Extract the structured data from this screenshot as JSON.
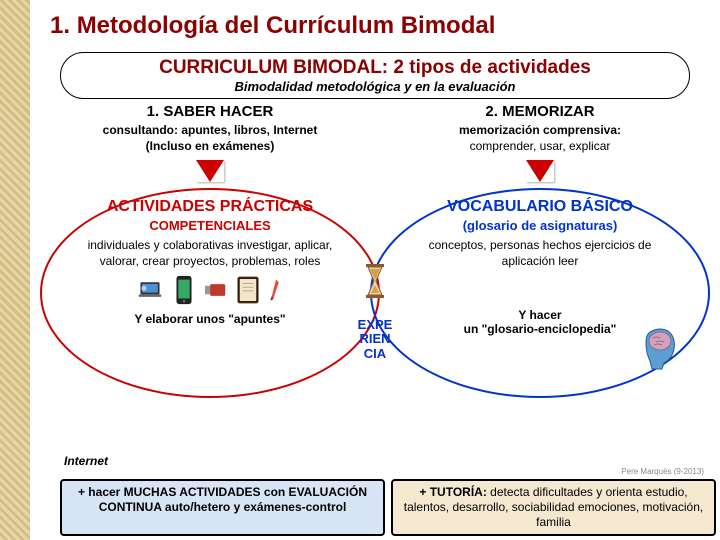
{
  "slide": {
    "number": "1.",
    "title": "Metodología del Currículum Bimodal"
  },
  "main": {
    "title": "CURRICULUM BIMODAL: 2 tipos de actividades",
    "subtitle": "Bimodalidad metodológica y en la evaluación"
  },
  "leftCol": {
    "title": "1. SABER HACER",
    "sub": "consultando: apuntes, libros, Internet",
    "sub2": "(Incluso en exámenes)"
  },
  "rightCol": {
    "title": "2. MEMORIZAR",
    "sub": "memorización comprensiva:",
    "sub2": "comprender, usar, explicar"
  },
  "leftAct": {
    "title": "ACTIVIDADES PRÁCTICAS",
    "subtitle": "COMPETENCIALES",
    "desc": "individuales y colaborativas investigar, aplicar, valorar, crear proyectos, problemas, roles",
    "bottom": "Y elaborar unos \"apuntes\""
  },
  "rightAct": {
    "title": "VOCABULARIO BÁSICO",
    "subtitle": "(glosario de asignaturas)",
    "desc": "conceptos, personas hechos ejercicios de aplicación leer",
    "bottom": "Y hacer",
    "bottom2": "un \"glosario-enciclopedia\""
  },
  "center": {
    "label": "EXPE\nRIEN\nCIA"
  },
  "labels": {
    "internet": "Internet",
    "credit": "Pere Marquès (9-2013)"
  },
  "footer": {
    "left": "+ hacer MUCHAS ACTIVIDADES con EVALUACIÓN CONTINUA auto/hetero y exámenes-control",
    "rightBold": "+ TUTORÍA:",
    "rightRest": " detecta dificultades y orienta estudio, talentos, desarrollo, sociabilidad emociones, motivación, familia"
  },
  "colors": {
    "darkRed": "#8b0000",
    "red": "#cc0000",
    "blue": "#0033cc",
    "footerLeftBg": "#d6e4f5",
    "footerRightBg": "#f5e8d0"
  }
}
